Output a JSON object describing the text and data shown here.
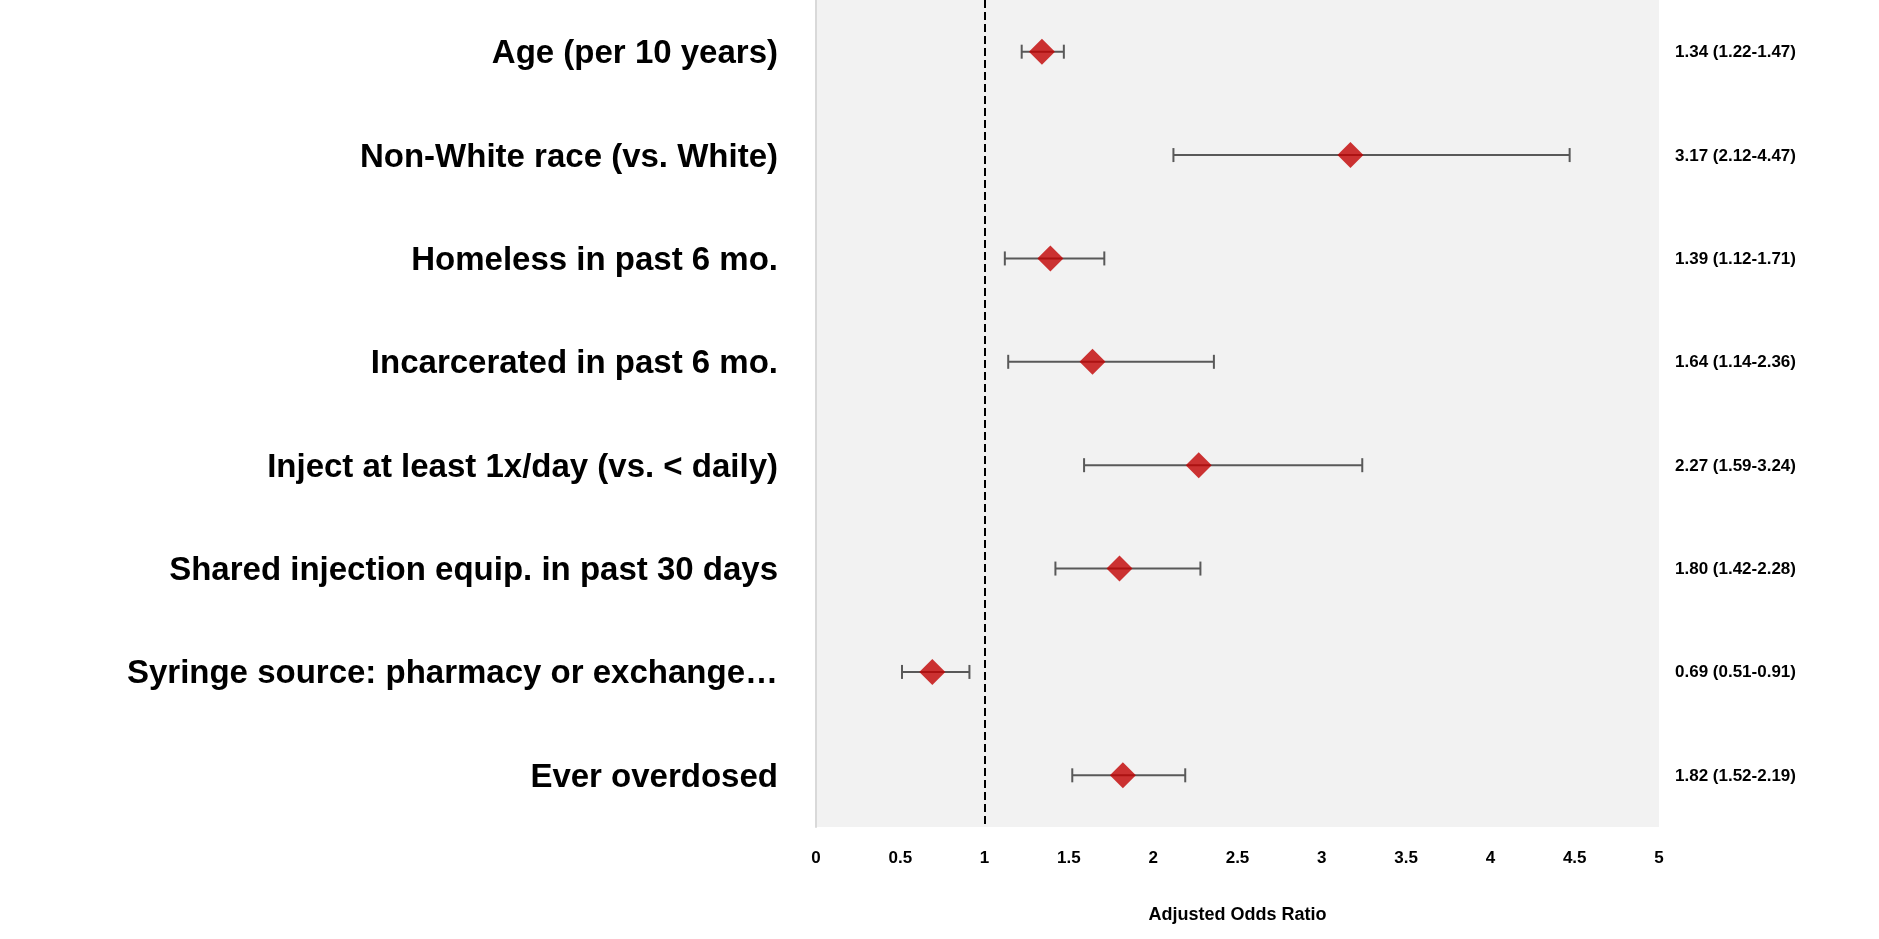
{
  "chart_data": {
    "type": "scatter",
    "orientation": "horizontal",
    "categories": [
      "Age (per 10 years)",
      "Non-White race (vs. White)",
      "Homeless in past 6 mo.",
      "Incarcerated in past 6 mo.",
      "Inject at least 1x/day (vs. < daily)",
      "Shared injection equip. in past 30 days",
      "Syringe source: pharmacy or exchange…",
      "Ever overdosed"
    ],
    "values": [
      1.34,
      3.17,
      1.39,
      1.64,
      2.27,
      1.8,
      0.69,
      1.82
    ],
    "errors": [
      [
        1.22,
        1.47
      ],
      [
        2.12,
        4.47
      ],
      [
        1.12,
        1.71
      ],
      [
        1.14,
        2.36
      ],
      [
        1.59,
        3.24
      ],
      [
        1.42,
        2.28
      ],
      [
        0.51,
        0.91
      ],
      [
        1.52,
        2.19
      ]
    ],
    "value_labels": [
      "1.34 (1.22-1.47)",
      "3.17 (2.12-4.47)",
      "1.39 (1.12-1.71)",
      "1.64 (1.14-2.36)",
      "2.27 (1.59-3.24)",
      "1.80 (1.42-2.28)",
      "0.69 (0.51-0.91)",
      "1.82 (1.52-2.19)"
    ],
    "color": "#c00000",
    "marker": "diamond",
    "xlim": [
      0,
      5
    ],
    "xticks": [
      0,
      0.5,
      1,
      1.5,
      2,
      2.5,
      3,
      3.5,
      4,
      4.5,
      5
    ],
    "xlabel": "Adjusted Odds Ratio",
    "ref_lines": [
      {
        "axis": "x",
        "value": 1,
        "line_style": "dashed",
        "color": "#000000"
      }
    ],
    "grid": false
  }
}
